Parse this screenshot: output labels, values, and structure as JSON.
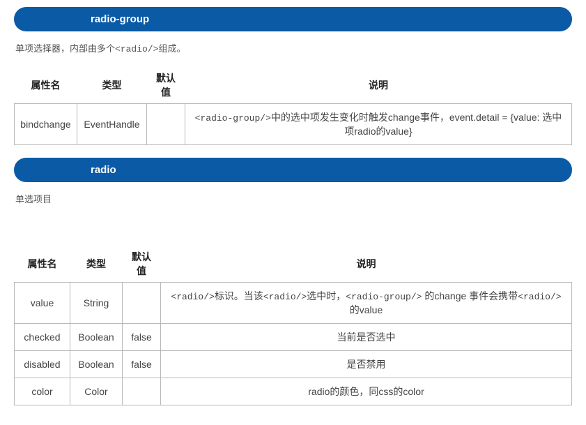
{
  "section1": {
    "title": "radio-group",
    "description_pre": "单项选择器，内部由多个",
    "description_code": "<radio/>",
    "description_post": "组成。",
    "table": {
      "headers": {
        "attr": "属性名",
        "type": "类型",
        "default": "默认值",
        "desc": "说明"
      },
      "rows": [
        {
          "attr": "bindchange",
          "type": "EventHandle",
          "default": "",
          "desc_code1": "<radio-group/>",
          "desc_mid": "中的选中项发生变化时触发change事件，event.detail = {value: 选中项radio的value}"
        }
      ]
    }
  },
  "section2": {
    "title": "radio",
    "description": "单选项目",
    "table": {
      "headers": {
        "attr": "属性名",
        "type": "类型",
        "default": "默认值",
        "desc": "说明"
      },
      "rows": [
        {
          "attr": "value",
          "type": "String",
          "default": "",
          "desc_c1": "<radio/>",
          "desc_t1": "标识。当该",
          "desc_c2": "<radio/>",
          "desc_t2": "选中时，",
          "desc_c3": "<radio-group/>",
          "desc_t3": " 的change 事件会携带",
          "desc_c4": "<radio/>",
          "desc_t4": "的value"
        },
        {
          "attr": "checked",
          "type": "Boolean",
          "default": "false",
          "desc": "当前是否选中"
        },
        {
          "attr": "disabled",
          "type": "Boolean",
          "default": "false",
          "desc": "是否禁用"
        },
        {
          "attr": "color",
          "type": "Color",
          "default": "",
          "desc": "radio的颜色，同css的color"
        }
      ]
    }
  },
  "styling": {
    "pill_background": "#0a5aa5",
    "pill_text_color": "#ffffff",
    "border_color": "#b8b8b8",
    "text_color": "#444444",
    "desc_color": "#555555"
  }
}
